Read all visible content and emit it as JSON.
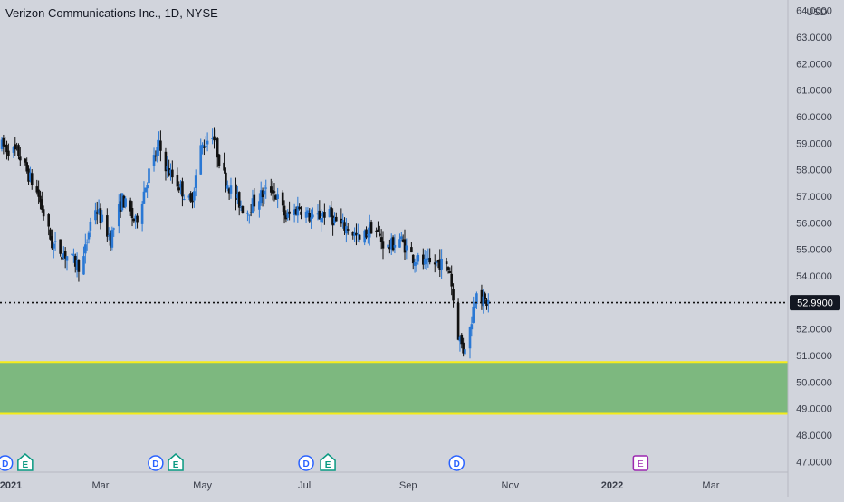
{
  "header": {
    "title": "Verizon Communications Inc., 1D, NYSE"
  },
  "price_axis": {
    "currency": "USD"
  },
  "last_price": {
    "label": "52.9900"
  },
  "chart_data": {
    "type": "candlestick",
    "title": "Verizon Communications Inc., 1D, NYSE",
    "yunit": "USD",
    "ylim": [
      46.6,
      64.4
    ],
    "yticks": [
      "64.0000",
      "63.0000",
      "62.0000",
      "61.0000",
      "60.0000",
      "59.0000",
      "58.0000",
      "57.0000",
      "56.0000",
      "55.0000",
      "54.0000",
      "53.0000",
      "52.0000",
      "51.0000",
      "50.0000",
      "49.0000",
      "48.0000",
      "47.0000"
    ],
    "xticks": [
      {
        "label": "2021",
        "bold": true
      },
      {
        "label": "Mar",
        "bold": false
      },
      {
        "label": "May",
        "bold": false
      },
      {
        "label": "Jul",
        "bold": false
      },
      {
        "label": "Sep",
        "bold": false
      },
      {
        "label": "Nov",
        "bold": false
      },
      {
        "label": "2022",
        "bold": true
      },
      {
        "label": "Mar",
        "bold": false
      }
    ],
    "xtick_days": [
      0,
      59,
      120,
      181,
      243,
      304,
      365,
      424
    ],
    "xlim_days": [
      0,
      469
    ],
    "last_price": 52.99,
    "price_line_dotted": true,
    "zone": {
      "low": 48.8,
      "high": 50.75,
      "fill": "#7db87f",
      "border": "#f5ec1b"
    },
    "colors": {
      "up": "#2a78d4",
      "down": "#111111",
      "background": "#d1d4dc",
      "axis_text": "#3a3e4a"
    },
    "waypoints": [
      {
        "day": 0,
        "price": 58.9
      },
      {
        "day": 10,
        "price": 58.6
      },
      {
        "day": 22,
        "price": 57.0
      },
      {
        "day": 30,
        "price": 55.2
      },
      {
        "day": 38,
        "price": 54.8
      },
      {
        "day": 48,
        "price": 54.3
      },
      {
        "day": 55,
        "price": 56.7
      },
      {
        "day": 65,
        "price": 55.4
      },
      {
        "day": 72,
        "price": 56.9
      },
      {
        "day": 80,
        "price": 56.0
      },
      {
        "day": 88,
        "price": 57.9
      },
      {
        "day": 94,
        "price": 58.9
      },
      {
        "day": 99,
        "price": 58.0
      },
      {
        "day": 106,
        "price": 57.4
      },
      {
        "day": 113,
        "price": 56.7
      },
      {
        "day": 119,
        "price": 58.8
      },
      {
        "day": 126,
        "price": 59.4
      },
      {
        "day": 132,
        "price": 57.9
      },
      {
        "day": 138,
        "price": 57.1
      },
      {
        "day": 146,
        "price": 56.4
      },
      {
        "day": 154,
        "price": 57.0
      },
      {
        "day": 162,
        "price": 57.3
      },
      {
        "day": 170,
        "price": 56.2
      },
      {
        "day": 178,
        "price": 56.6
      },
      {
        "day": 186,
        "price": 56.1
      },
      {
        "day": 194,
        "price": 56.4
      },
      {
        "day": 202,
        "price": 55.9
      },
      {
        "day": 208,
        "price": 55.8
      },
      {
        "day": 214,
        "price": 55.3
      },
      {
        "day": 222,
        "price": 55.9
      },
      {
        "day": 230,
        "price": 55.0
      },
      {
        "day": 238,
        "price": 55.4
      },
      {
        "day": 246,
        "price": 54.7
      },
      {
        "day": 254,
        "price": 54.4
      },
      {
        "day": 262,
        "price": 54.5
      },
      {
        "day": 268,
        "price": 54.2
      },
      {
        "day": 272,
        "price": 52.0
      },
      {
        "day": 276,
        "price": 51.2
      },
      {
        "day": 280,
        "price": 52.0
      },
      {
        "day": 284,
        "price": 53.6
      },
      {
        "day": 288,
        "price": 53.0
      },
      {
        "day": 293,
        "price": 52.99
      }
    ],
    "events": [
      {
        "day": 2,
        "label": "D"
      },
      {
        "day": 14,
        "label": "E"
      },
      {
        "day": 92,
        "label": "D"
      },
      {
        "day": 104,
        "label": "E"
      },
      {
        "day": 182,
        "label": "D"
      },
      {
        "day": 195,
        "label": "E"
      },
      {
        "day": 272,
        "label": "D"
      },
      {
        "day": 382,
        "label": "E",
        "upcoming": true
      }
    ]
  }
}
